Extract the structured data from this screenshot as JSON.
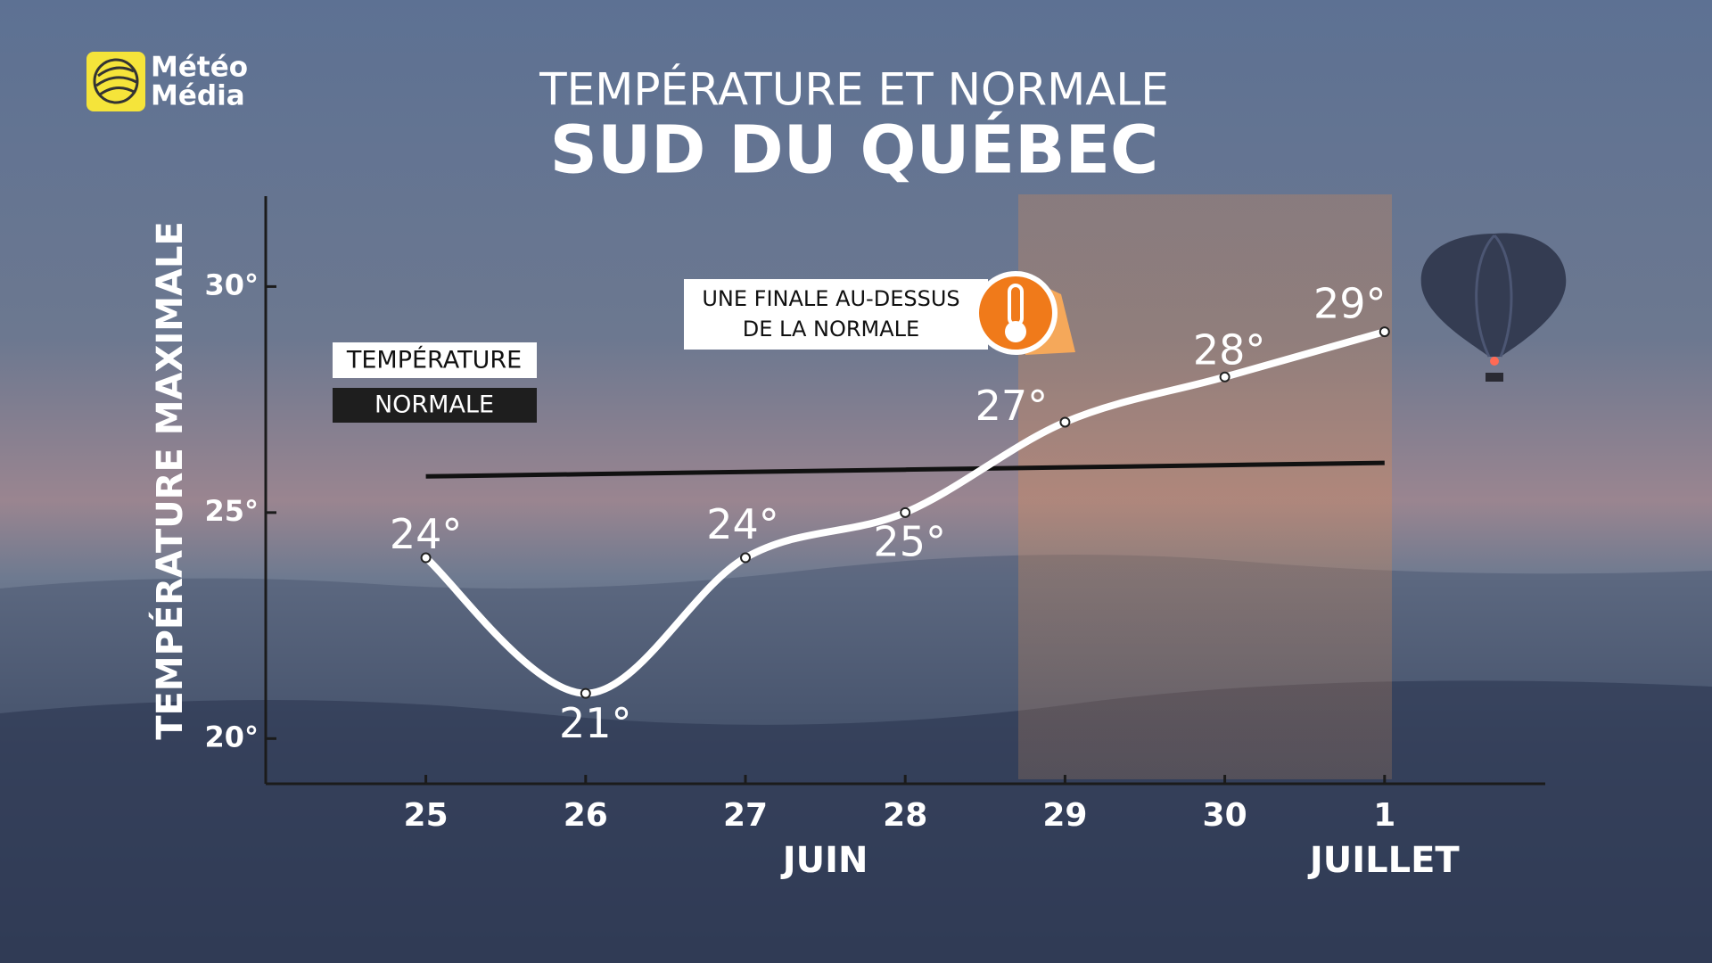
{
  "logo": {
    "line1": "Météo",
    "line2": "Média"
  },
  "chart_data": {
    "type": "line",
    "title": "TEMPÉRATURE ET NORMALE",
    "subtitle": "SUD DU QUÉBEC",
    "y_label": "TEMPÉRATURE MAXIMALE",
    "categories": [
      "25",
      "26",
      "27",
      "28",
      "29",
      "30",
      "1"
    ],
    "months": [
      "JUIN",
      "JUILLET"
    ],
    "series": [
      {
        "name": "TEMPÉRATURE",
        "color": "#ffffff",
        "values": [
          24,
          21,
          24,
          25,
          27,
          28,
          29
        ],
        "value_labels": [
          "24°",
          "21°",
          "24°",
          "25°",
          "27°",
          "28°",
          "29°"
        ]
      },
      {
        "name": "NORMALE",
        "color": "#111111",
        "values": [
          25.8,
          25.85,
          25.9,
          25.95,
          26.0,
          26.05,
          26.1
        ]
      }
    ],
    "ylim": [
      19,
      32
    ],
    "yticks": [
      {
        "value": 20,
        "label": "20°"
      },
      {
        "value": 25,
        "label": "25°"
      },
      {
        "value": 30,
        "label": "30°"
      }
    ],
    "annotation": [
      "UNE FINALE AU-DESSUS",
      "DE LA NORMALE"
    ]
  }
}
